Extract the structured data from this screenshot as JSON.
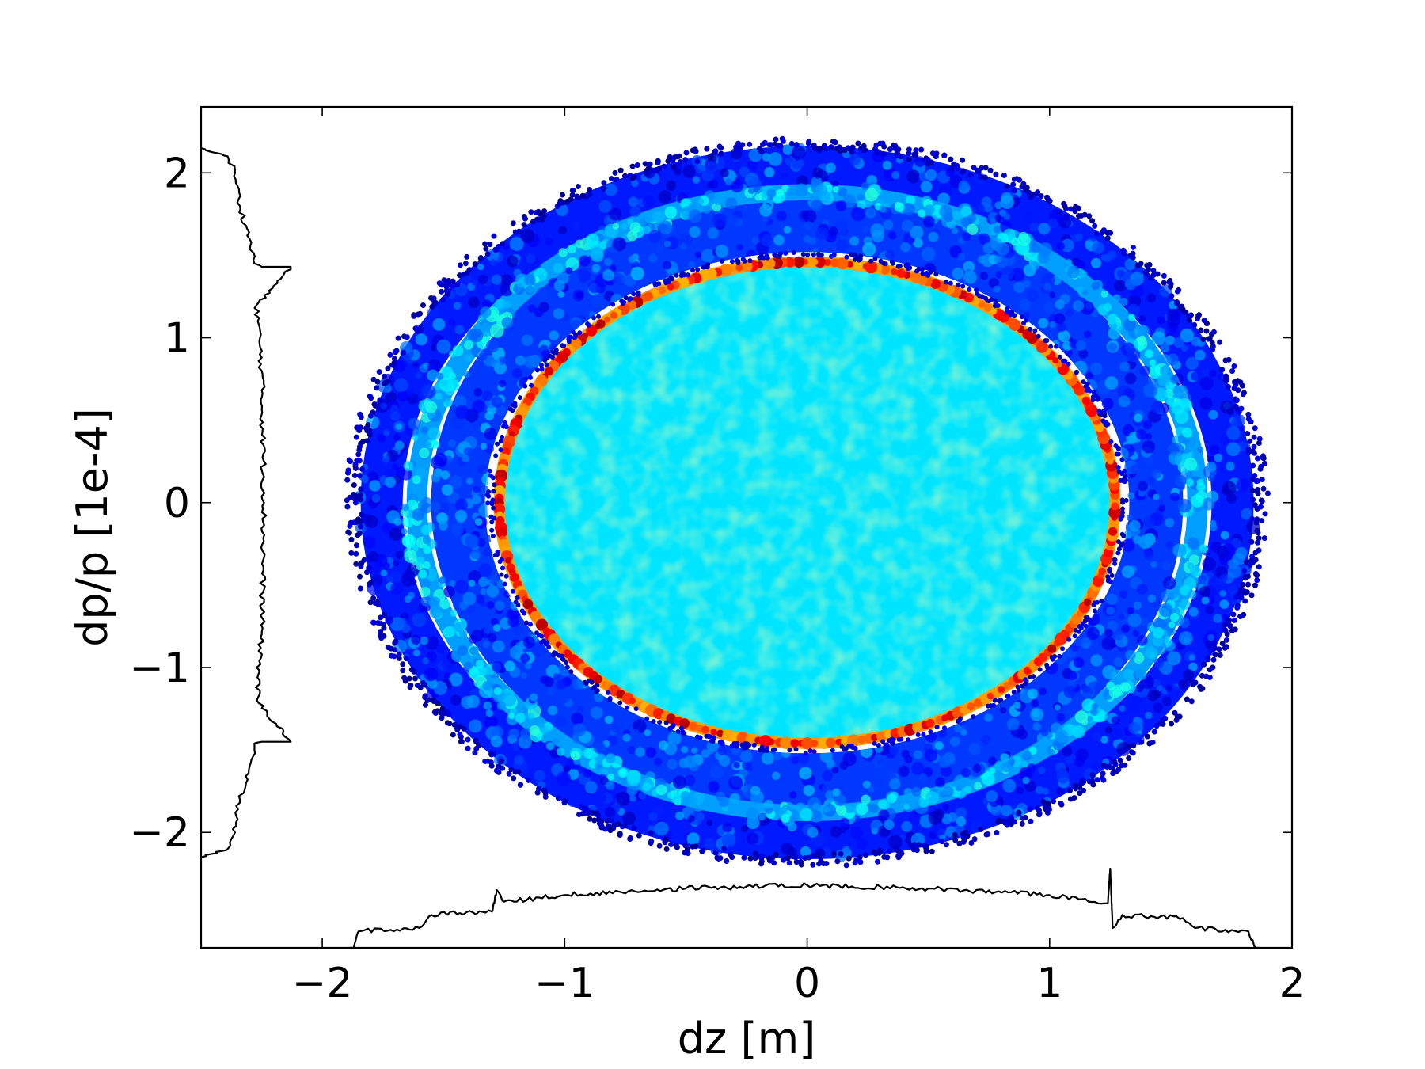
{
  "chart_data": {
    "type": "scatter",
    "subtype": "phase-space density scatter with marginal projections",
    "xlabel": "dz [m]",
    "ylabel": "dp/p [1e-4]",
    "xlim": [
      -2.5,
      2.0
    ],
    "ylim": [
      -2.7,
      2.4
    ],
    "xticks": [
      -2,
      -1,
      0,
      1,
      2
    ],
    "xtick_labels": [
      "−2",
      "−1",
      "0",
      "1",
      "2"
    ],
    "yticks": [
      -2,
      -1,
      0,
      1,
      2
    ],
    "ytick_labels": [
      "−2",
      "−1",
      "0",
      "1",
      "2"
    ],
    "grid": false,
    "legend": "none",
    "colormap": "jet",
    "colormap_stops": [
      "#00008f",
      "#0000ff",
      "#007fff",
      "#00ffff",
      "#7fff7f",
      "#ffff00",
      "#ff7f00",
      "#ff0000",
      "#7f0000"
    ],
    "distribution": {
      "center": [
        0.0,
        0.0
      ],
      "core": {
        "dz_half_width": 1.25,
        "dpp_half_height": 1.45,
        "relative_density": 0.35
      },
      "core_edge_ring": {
        "dz_half_width": 1.27,
        "dpp_half_height": 1.46,
        "relative_density": 0.95
      },
      "gap": {
        "dz_half_width": 1.32,
        "dpp_half_height": 1.52
      },
      "inner_halo": {
        "dz_from": 1.32,
        "dz_to": 1.56,
        "dpp_from": 1.52,
        "dpp_to": 1.82,
        "relative_density": 0.18
      },
      "middle_halo": {
        "dz_from": 1.56,
        "dz_to": 1.66,
        "dpp_from": 1.82,
        "dpp_to": 1.92,
        "relative_density": 0.28
      },
      "outer_halo": {
        "dz_from": 1.66,
        "dz_to": 1.85,
        "dpp_from": 1.92,
        "dpp_to": 2.15,
        "relative_density": 0.15
      }
    },
    "series": [
      {
        "role": "dz projection (histogram along bottom)",
        "color": "#000000",
        "x": [
          -1.92,
          -1.87,
          -1.85,
          -1.6,
          -1.55,
          -1.3,
          -1.28,
          -1.25,
          -1.0,
          -0.5,
          0.0,
          0.5,
          1.0,
          1.24,
          1.25,
          1.26,
          1.3,
          1.55,
          1.6,
          1.82,
          1.85,
          1.87
        ],
        "y": [
          -2.7,
          -2.7,
          -2.6,
          -2.58,
          -2.5,
          -2.48,
          -2.35,
          -2.42,
          -2.38,
          -2.34,
          -2.32,
          -2.34,
          -2.38,
          -2.43,
          -2.22,
          -2.58,
          -2.5,
          -2.52,
          -2.58,
          -2.6,
          -2.7,
          -2.7
        ]
      },
      {
        "role": "dp/p projection (histogram along left)",
        "color": "#000000",
        "x": [
          -2.5,
          -2.39,
          -2.36,
          -2.34,
          -2.3,
          -2.28,
          -2.26,
          -2.25,
          -2.13,
          -2.27,
          -2.25,
          -2.24,
          -2.25,
          -2.27,
          -2.13,
          -2.25,
          -2.28,
          -2.3,
          -2.34,
          -2.36,
          -2.39,
          -2.5
        ],
        "y": [
          2.15,
          2.1,
          2.0,
          1.8,
          1.6,
          1.45,
          1.44,
          1.43,
          1.43,
          1.2,
          0.8,
          0.0,
          -0.8,
          -1.2,
          -1.45,
          -1.45,
          -1.46,
          -1.6,
          -1.8,
          -2.0,
          -2.1,
          -2.15
        ]
      }
    ]
  }
}
